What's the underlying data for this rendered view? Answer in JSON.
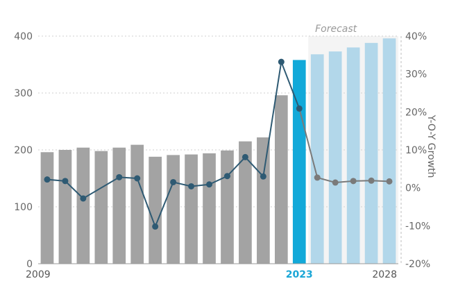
{
  "chart_data": {
    "type": "bar+line",
    "categories": [
      "2009",
      "2010",
      "2011",
      "2012",
      "2013",
      "2014",
      "2015",
      "2016",
      "2017",
      "2018",
      "2019",
      "2020",
      "2021",
      "2022",
      "2023",
      "2024",
      "2025",
      "2026",
      "2027",
      "2028"
    ],
    "x_tick_labels": [
      {
        "index": 0,
        "label": "2009"
      },
      {
        "index": 14,
        "label": "2023",
        "highlight": true
      },
      {
        "index": 19,
        "label": "2028"
      }
    ],
    "bars": {
      "values": [
        196,
        200,
        204,
        198,
        204,
        209,
        188,
        191,
        192,
        194,
        199,
        215,
        222,
        296,
        358,
        368,
        373,
        380,
        388,
        396
      ],
      "kinds": [
        "historical",
        "historical",
        "historical",
        "historical",
        "historical",
        "historical",
        "historical",
        "historical",
        "historical",
        "historical",
        "historical",
        "historical",
        "historical",
        "historical",
        "current",
        "forecast",
        "forecast",
        "forecast",
        "forecast",
        "forecast"
      ],
      "colors": {
        "historical": "#a3a3a3",
        "current": "#12a9d9",
        "forecast": "#b2d7ea"
      }
    },
    "line": {
      "values": [
        2.2,
        1.8,
        -2.8,
        null,
        2.8,
        2.5,
        -10.2,
        1.5,
        0.4,
        0.9,
        3.1,
        8.1,
        3.0,
        33.2,
        20.9,
        2.7,
        1.4,
        1.8,
        1.9,
        1.7
      ],
      "colors": {
        "historical": "#2e5a73",
        "forecast": "#7a7a7a"
      }
    },
    "y_left": {
      "ylim": [
        0,
        400
      ],
      "ticks": [
        0,
        100,
        200,
        300,
        400
      ]
    },
    "y_right": {
      "ylim": [
        -20,
        40
      ],
      "ticks": [
        -20,
        -10,
        0,
        10,
        20,
        30,
        40
      ],
      "tick_labels": [
        "-20%",
        "-10%",
        "0%",
        "10%",
        "20%",
        "30%",
        "40%"
      ],
      "label": "Y-O-Y Growth"
    },
    "forecast_label": "Forecast",
    "grid": "horizontal-dotted"
  }
}
